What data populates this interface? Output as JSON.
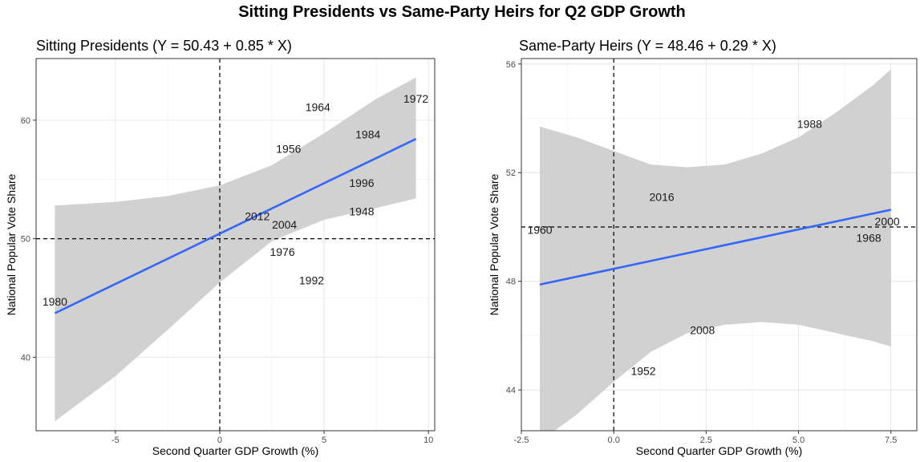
{
  "title": "Sitting Presidents vs Same-Party Heirs for Q2 GDP Growth",
  "chart_data": [
    {
      "type": "scatter",
      "title": "Sitting Presidents (Y = 50.43 + 0.85 * X)",
      "xlabel": "Second Quarter GDP Growth (%)",
      "ylabel": "National Popular Vote Share",
      "xlim": [
        -8.8,
        10.3
      ],
      "ylim": [
        33.8,
        65.2
      ],
      "xticks": [
        -5,
        0,
        5,
        10
      ],
      "xtick_labels": [
        "-5",
        "0",
        "5",
        "10"
      ],
      "yticks": [
        40,
        50,
        60
      ],
      "ytick_labels": [
        "40",
        "50",
        "60"
      ],
      "points": [
        {
          "label": "1980",
          "x": -7.9,
          "y": 44.7
        },
        {
          "label": "2012",
          "x": 1.8,
          "y": 51.9
        },
        {
          "label": "2004",
          "x": 3.1,
          "y": 51.2
        },
        {
          "label": "1976",
          "x": 3.0,
          "y": 48.9
        },
        {
          "label": "1956",
          "x": 3.3,
          "y": 57.6
        },
        {
          "label": "1964",
          "x": 4.7,
          "y": 61.1
        },
        {
          "label": "1992",
          "x": 4.4,
          "y": 46.5
        },
        {
          "label": "1996",
          "x": 6.8,
          "y": 54.7
        },
        {
          "label": "1948",
          "x": 6.8,
          "y": 52.3
        },
        {
          "label": "1984",
          "x": 7.1,
          "y": 58.8
        },
        {
          "label": "1972",
          "x": 9.4,
          "y": 61.8
        }
      ],
      "fit": {
        "intercept": 50.43,
        "slope": 0.85,
        "color": "#3366ff"
      },
      "ribbon": {
        "x": [
          -7.9,
          -5,
          -2.5,
          0,
          2.5,
          5,
          7.5,
          9.4
        ],
        "lower": [
          34.6,
          38.4,
          42.3,
          46.3,
          49.8,
          51.6,
          52.6,
          53.4
        ],
        "upper": [
          52.8,
          53.1,
          53.6,
          54.5,
          56.2,
          58.9,
          61.8,
          63.6
        ],
        "color": "#cccccc"
      },
      "refline_x": 0,
      "refline_y": 50,
      "grid": true
    },
    {
      "type": "scatter",
      "title": "Same-Party Heirs (Y = 48.46 + 0.29 * X)",
      "xlabel": "Second Quarter GDP Growth (%)",
      "ylabel": "National Popular Vote Share",
      "xlim": [
        -2.5,
        8.2
      ],
      "ylim": [
        42.5,
        56.2
      ],
      "xticks": [
        -2.5,
        0,
        2.5,
        5,
        7.5
      ],
      "xtick_labels": [
        "-2.5",
        "0.0",
        "2.5",
        "5.0",
        "7.5"
      ],
      "yticks": [
        44,
        48,
        52,
        56
      ],
      "ytick_labels": [
        "44",
        "48",
        "52",
        "56"
      ],
      "points": [
        {
          "label": "1960",
          "x": -2.0,
          "y": 49.9
        },
        {
          "label": "2016",
          "x": 1.3,
          "y": 51.1
        },
        {
          "label": "1988",
          "x": 5.3,
          "y": 53.8
        },
        {
          "label": "2000",
          "x": 7.4,
          "y": 50.2
        },
        {
          "label": "1968",
          "x": 6.9,
          "y": 49.6
        },
        {
          "label": "2008",
          "x": 2.4,
          "y": 46.2
        },
        {
          "label": "1952",
          "x": 0.8,
          "y": 44.7
        }
      ],
      "fit": {
        "intercept": 48.46,
        "slope": 0.29,
        "color": "#3366ff"
      },
      "ribbon": {
        "x": [
          -2.0,
          -1,
          0,
          1,
          2,
          3,
          4,
          5,
          6,
          7,
          7.5
        ],
        "lower": [
          42.1,
          43.1,
          44.3,
          45.4,
          46.1,
          46.4,
          46.5,
          46.4,
          46.1,
          45.8,
          45.6
        ],
        "upper": [
          53.7,
          53.3,
          52.8,
          52.3,
          52.2,
          52.3,
          52.7,
          53.3,
          54.2,
          55.2,
          55.8
        ],
        "color": "#cccccc"
      },
      "refline_x": 0,
      "refline_y": 50,
      "grid": true
    }
  ]
}
